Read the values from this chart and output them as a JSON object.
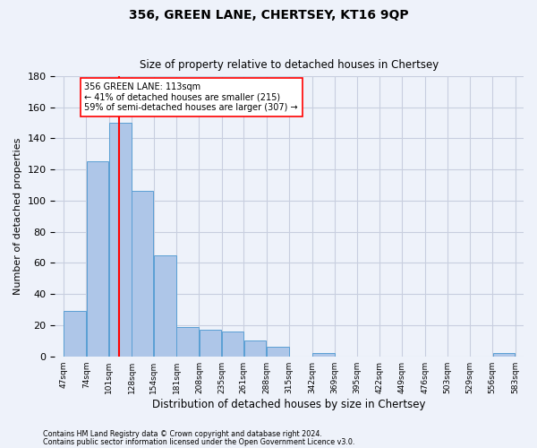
{
  "title": "356, GREEN LANE, CHERTSEY, KT16 9QP",
  "subtitle": "Size of property relative to detached houses in Chertsey",
  "xlabel": "Distribution of detached houses by size in Chertsey",
  "ylabel": "Number of detached properties",
  "footer_line1": "Contains HM Land Registry data © Crown copyright and database right 2024.",
  "footer_line2": "Contains public sector information licensed under the Open Government Licence v3.0.",
  "bar_edges": [
    47,
    74,
    101,
    128,
    154,
    181,
    208,
    235,
    261,
    288,
    315,
    342,
    369,
    395,
    422,
    449,
    476,
    503,
    529,
    556,
    583
  ],
  "bar_heights": [
    29,
    125,
    150,
    106,
    65,
    19,
    17,
    16,
    10,
    6,
    0,
    2,
    0,
    0,
    0,
    0,
    0,
    0,
    0,
    2
  ],
  "bar_color": "#aec6e8",
  "bar_edge_color": "#5a9fd4",
  "vline_x": 113,
  "vline_color": "red",
  "annotation_title": "356 GREEN LANE: 113sqm",
  "annotation_line1": "← 41% of detached houses are smaller (215)",
  "annotation_line2": "59% of semi-detached houses are larger (307) →",
  "annotation_box_color": "white",
  "annotation_box_edgecolor": "red",
  "ylim": [
    0,
    180
  ],
  "yticks": [
    0,
    20,
    40,
    60,
    80,
    100,
    120,
    140,
    160,
    180
  ],
  "background_color": "#eef2fa",
  "axes_background": "#eef2fa",
  "grid_color": "#c8cedf"
}
